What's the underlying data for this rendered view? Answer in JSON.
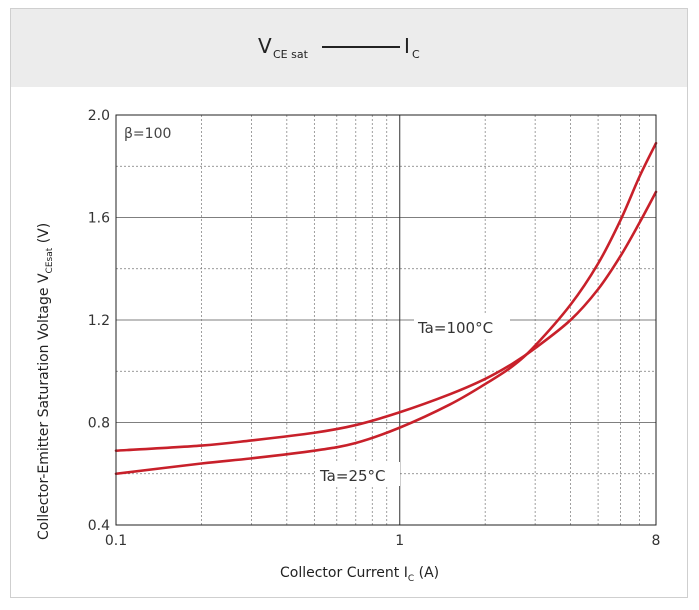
{
  "header": {
    "title_main": "V",
    "title_sub": "CE sat",
    "title_right_main": "I",
    "title_right_sub": "C"
  },
  "chart_data": {
    "type": "line",
    "xscale": "log",
    "xlim": [
      0.1,
      8
    ],
    "ylim": [
      0.4,
      2.0
    ],
    "xticks": [
      "0.1",
      "1",
      "8"
    ],
    "yticks": [
      "0.4",
      "0.8",
      "1.2",
      "1.6",
      "2.0"
    ],
    "grid": true,
    "xlabel": {
      "main": "Collector Current  I",
      "sub": "C",
      "tail": " (A)"
    },
    "ylabel": {
      "main": "Collector-Emitter Saturation Voltage  V",
      "sub": "CEsat",
      "tail": " (V)"
    },
    "annotation": "β=100",
    "series": [
      {
        "name": "Ta=100°C",
        "color": "#c8202a",
        "x": [
          0.1,
          0.2,
          0.3,
          0.5,
          0.7,
          1.0,
          1.5,
          2.0,
          2.5,
          3.0,
          4.0,
          5.0,
          6.0,
          7.0,
          8.0
        ],
        "y": [
          0.69,
          0.71,
          0.73,
          0.76,
          0.79,
          0.84,
          0.91,
          0.97,
          1.03,
          1.09,
          1.2,
          1.32,
          1.45,
          1.58,
          1.7
        ]
      },
      {
        "name": "Ta=25°C",
        "color": "#c8202a",
        "x": [
          0.1,
          0.2,
          0.3,
          0.5,
          0.7,
          1.0,
          1.5,
          2.0,
          2.5,
          3.0,
          4.0,
          5.0,
          6.0,
          7.0,
          8.0
        ],
        "y": [
          0.6,
          0.64,
          0.66,
          0.69,
          0.72,
          0.78,
          0.87,
          0.95,
          1.02,
          1.1,
          1.26,
          1.42,
          1.59,
          1.76,
          1.89
        ]
      }
    ]
  }
}
